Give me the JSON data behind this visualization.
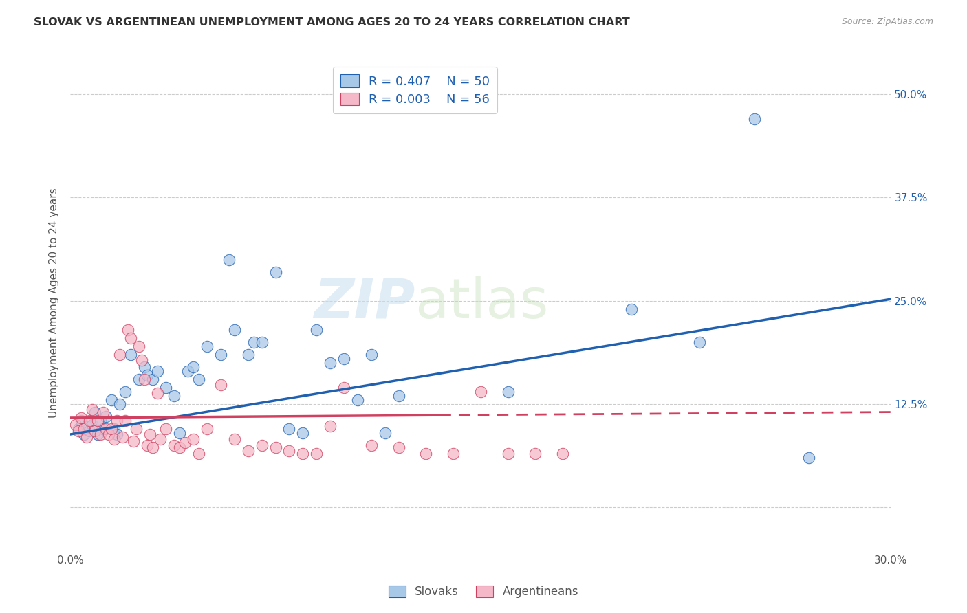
{
  "title": "SLOVAK VS ARGENTINEAN UNEMPLOYMENT AMONG AGES 20 TO 24 YEARS CORRELATION CHART",
  "source": "Source: ZipAtlas.com",
  "ylabel_label": "Unemployment Among Ages 20 to 24 years",
  "ytick_values": [
    0.0,
    0.125,
    0.25,
    0.375,
    0.5
  ],
  "ytick_labels": [
    "",
    "12.5%",
    "25.0%",
    "37.5%",
    "50.0%"
  ],
  "xlim": [
    0.0,
    0.3
  ],
  "ylim": [
    -0.055,
    0.55
  ],
  "slovak_R": "0.407",
  "slovak_N": "50",
  "argent_R": "0.003",
  "argent_N": "56",
  "slovak_color": "#a8c8e8",
  "argent_color": "#f4b8c8",
  "trendline_slovak_color": "#2060b0",
  "trendline_argent_color": "#d04060",
  "watermark_zip": "ZIP",
  "watermark_atlas": "atlas",
  "slovak_points": [
    [
      0.003,
      0.095
    ],
    [
      0.004,
      0.105
    ],
    [
      0.005,
      0.088
    ],
    [
      0.006,
      0.098
    ],
    [
      0.007,
      0.092
    ],
    [
      0.008,
      0.1
    ],
    [
      0.009,
      0.115
    ],
    [
      0.01,
      0.088
    ],
    [
      0.011,
      0.105
    ],
    [
      0.012,
      0.095
    ],
    [
      0.013,
      0.11
    ],
    [
      0.015,
      0.13
    ],
    [
      0.016,
      0.095
    ],
    [
      0.017,
      0.088
    ],
    [
      0.018,
      0.125
    ],
    [
      0.02,
      0.14
    ],
    [
      0.022,
      0.185
    ],
    [
      0.025,
      0.155
    ],
    [
      0.027,
      0.17
    ],
    [
      0.028,
      0.16
    ],
    [
      0.03,
      0.155
    ],
    [
      0.032,
      0.165
    ],
    [
      0.035,
      0.145
    ],
    [
      0.038,
      0.135
    ],
    [
      0.04,
      0.09
    ],
    [
      0.043,
      0.165
    ],
    [
      0.045,
      0.17
    ],
    [
      0.047,
      0.155
    ],
    [
      0.05,
      0.195
    ],
    [
      0.055,
      0.185
    ],
    [
      0.058,
      0.3
    ],
    [
      0.06,
      0.215
    ],
    [
      0.065,
      0.185
    ],
    [
      0.067,
      0.2
    ],
    [
      0.07,
      0.2
    ],
    [
      0.075,
      0.285
    ],
    [
      0.08,
      0.095
    ],
    [
      0.085,
      0.09
    ],
    [
      0.09,
      0.215
    ],
    [
      0.095,
      0.175
    ],
    [
      0.1,
      0.18
    ],
    [
      0.105,
      0.13
    ],
    [
      0.11,
      0.185
    ],
    [
      0.115,
      0.09
    ],
    [
      0.12,
      0.135
    ],
    [
      0.16,
      0.14
    ],
    [
      0.205,
      0.24
    ],
    [
      0.23,
      0.2
    ],
    [
      0.25,
      0.47
    ],
    [
      0.27,
      0.06
    ]
  ],
  "argent_points": [
    [
      0.002,
      0.1
    ],
    [
      0.003,
      0.092
    ],
    [
      0.004,
      0.108
    ],
    [
      0.005,
      0.095
    ],
    [
      0.006,
      0.085
    ],
    [
      0.007,
      0.105
    ],
    [
      0.008,
      0.118
    ],
    [
      0.009,
      0.092
    ],
    [
      0.01,
      0.105
    ],
    [
      0.011,
      0.088
    ],
    [
      0.012,
      0.115
    ],
    [
      0.013,
      0.095
    ],
    [
      0.014,
      0.088
    ],
    [
      0.015,
      0.095
    ],
    [
      0.016,
      0.082
    ],
    [
      0.017,
      0.105
    ],
    [
      0.018,
      0.185
    ],
    [
      0.019,
      0.085
    ],
    [
      0.02,
      0.105
    ],
    [
      0.021,
      0.215
    ],
    [
      0.022,
      0.205
    ],
    [
      0.023,
      0.08
    ],
    [
      0.024,
      0.095
    ],
    [
      0.025,
      0.195
    ],
    [
      0.026,
      0.178
    ],
    [
      0.027,
      0.155
    ],
    [
      0.028,
      0.075
    ],
    [
      0.029,
      0.088
    ],
    [
      0.03,
      0.072
    ],
    [
      0.032,
      0.138
    ],
    [
      0.033,
      0.082
    ],
    [
      0.035,
      0.095
    ],
    [
      0.038,
      0.075
    ],
    [
      0.04,
      0.072
    ],
    [
      0.042,
      0.078
    ],
    [
      0.045,
      0.082
    ],
    [
      0.047,
      0.065
    ],
    [
      0.05,
      0.095
    ],
    [
      0.055,
      0.148
    ],
    [
      0.06,
      0.082
    ],
    [
      0.065,
      0.068
    ],
    [
      0.07,
      0.075
    ],
    [
      0.075,
      0.072
    ],
    [
      0.08,
      0.068
    ],
    [
      0.085,
      0.065
    ],
    [
      0.09,
      0.065
    ],
    [
      0.095,
      0.098
    ],
    [
      0.1,
      0.145
    ],
    [
      0.11,
      0.075
    ],
    [
      0.12,
      0.072
    ],
    [
      0.13,
      0.065
    ],
    [
      0.14,
      0.065
    ],
    [
      0.16,
      0.065
    ],
    [
      0.15,
      0.14
    ],
    [
      0.17,
      0.065
    ],
    [
      0.18,
      0.065
    ]
  ]
}
